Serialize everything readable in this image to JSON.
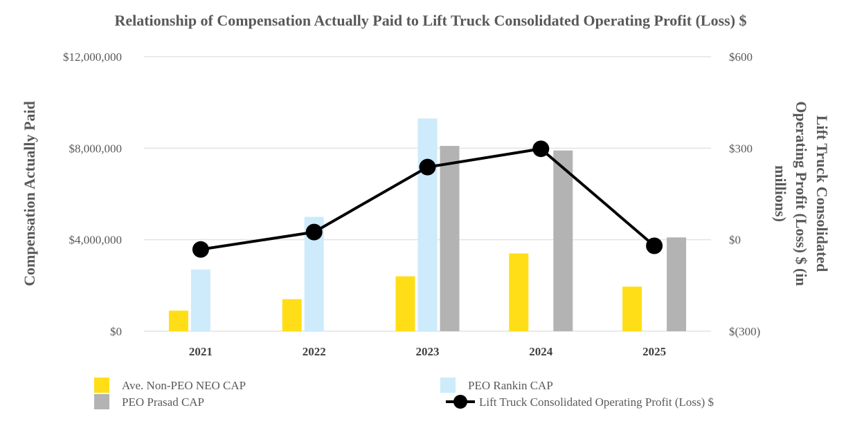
{
  "chart_data": {
    "type": "bar",
    "title": "Relationship of Compensation Actually Paid to Lift Truck Consolidated Operating Profit (Loss) $",
    "categories": [
      "2021",
      "2022",
      "2023",
      "2024",
      "2025"
    ],
    "ylabel": "Compensation Actually Paid",
    "ylim": [
      0,
      12000000
    ],
    "yticks": [
      0,
      4000000,
      8000000,
      12000000
    ],
    "ytick_labels": [
      "$0",
      "$4,000,000",
      "$8,000,000",
      "$12,000,000"
    ],
    "y2label_lines": [
      "Lift Truck Consolidated",
      "Operating Profit (Loss) $ (in",
      "millions)"
    ],
    "y2lim": [
      -300,
      600
    ],
    "y2ticks": [
      -300,
      0,
      300,
      600
    ],
    "y2tick_labels": [
      "$(300)",
      "$0",
      "$300",
      "$600"
    ],
    "grid": true,
    "legend_position": "bottom",
    "series": [
      {
        "name": "Ave. Non-PEO NEO CAP",
        "type": "bar",
        "axis": "left",
        "color": "#FFDE17",
        "values": [
          900000,
          1400000,
          2400000,
          3400000,
          1950000
        ]
      },
      {
        "name": "PEO Rankin CAP",
        "type": "bar",
        "axis": "left",
        "color": "#CDEBFA",
        "values": [
          2700000,
          5000000,
          9300000,
          null,
          null
        ]
      },
      {
        "name": "PEO Prasad CAP",
        "type": "bar",
        "axis": "left",
        "color": "#B3B3B3",
        "values": [
          null,
          null,
          8100000,
          7900000,
          4100000
        ]
      },
      {
        "name": "Lift Truck Consolidated Operating Profit (Loss) $",
        "type": "line",
        "axis": "right",
        "color": "#000000",
        "values": [
          -32,
          25,
          238,
          298,
          -20
        ]
      }
    ]
  }
}
